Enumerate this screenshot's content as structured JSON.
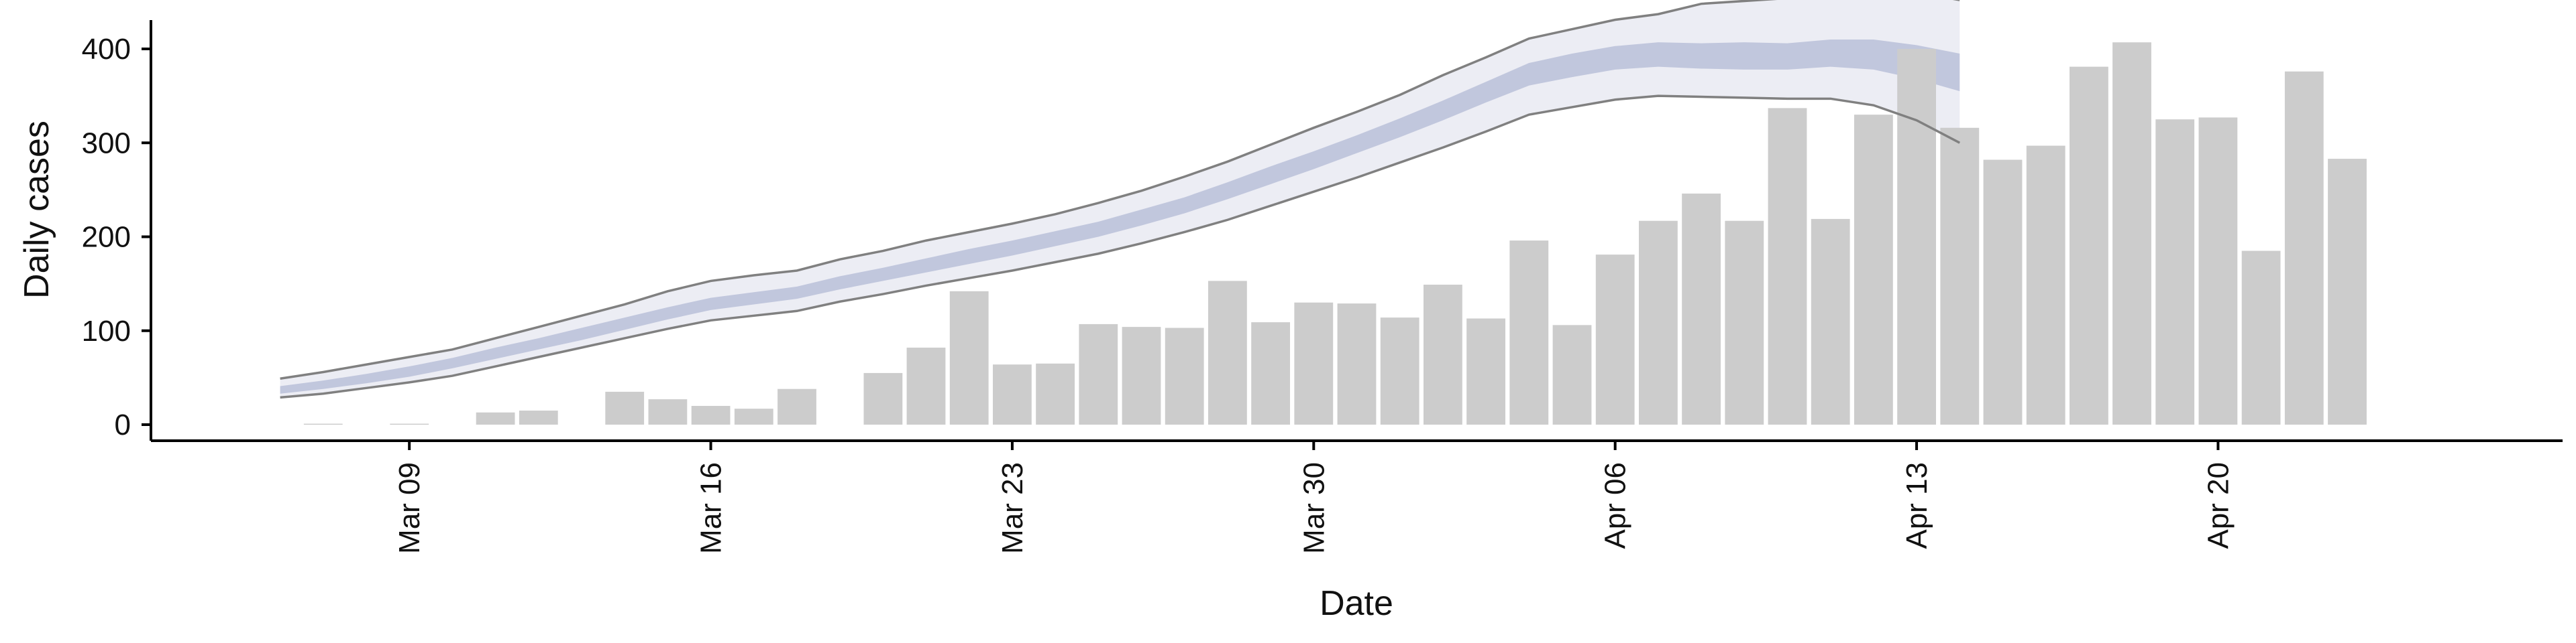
{
  "chart_data": {
    "type": "bar",
    "title": "",
    "xlabel": "Date",
    "ylabel": "Daily cases",
    "ylim": [
      0,
      430
    ],
    "y_ticks": [
      0,
      100,
      200,
      300,
      400
    ],
    "x_ticks": [
      {
        "date": "2020-03-09",
        "label": "Mar 09"
      },
      {
        "date": "2020-03-16",
        "label": "Mar 16"
      },
      {
        "date": "2020-03-23",
        "label": "Mar 23"
      },
      {
        "date": "2020-03-30",
        "label": "Mar 30"
      },
      {
        "date": "2020-04-06",
        "label": "Apr 06"
      },
      {
        "date": "2020-04-13",
        "label": "Apr 13"
      },
      {
        "date": "2020-04-20",
        "label": "Apr 20"
      }
    ],
    "xlim": [
      "2020-03-03",
      "2020-04-28"
    ],
    "grid": false,
    "legend": "none",
    "colors": {
      "bars": "#cccccc",
      "band_outer": "#c8cce0",
      "band_inner": "#b3bad6",
      "interval_line": "#808080",
      "axis": "#000000"
    },
    "bars": {
      "x": [
        "2020-03-07",
        "2020-03-09",
        "2020-03-11",
        "2020-03-12",
        "2020-03-14",
        "2020-03-15",
        "2020-03-16",
        "2020-03-17",
        "2020-03-18",
        "2020-03-20",
        "2020-03-21",
        "2020-03-22",
        "2020-03-23",
        "2020-03-24",
        "2020-03-25",
        "2020-03-26",
        "2020-03-27",
        "2020-03-28",
        "2020-03-29",
        "2020-03-30",
        "2020-03-31",
        "2020-04-01",
        "2020-04-02",
        "2020-04-03",
        "2020-04-04",
        "2020-04-05",
        "2020-04-06",
        "2020-04-07",
        "2020-04-08",
        "2020-04-09",
        "2020-04-10",
        "2020-04-11",
        "2020-04-12",
        "2020-04-13",
        "2020-04-14",
        "2020-04-15",
        "2020-04-16",
        "2020-04-17",
        "2020-04-18",
        "2020-04-19",
        "2020-04-20",
        "2020-04-21",
        "2020-04-22",
        "2020-04-23"
      ],
      "values": [
        1,
        1,
        13,
        15,
        35,
        27,
        20,
        17,
        38,
        55,
        82,
        142,
        64,
        65,
        107,
        104,
        103,
        153,
        109,
        130,
        129,
        114,
        149,
        113,
        196,
        106,
        181,
        217,
        246,
        217,
        337,
        219,
        330,
        400,
        316,
        282,
        297,
        381,
        407,
        325,
        327,
        185,
        376,
        283
      ]
    },
    "interval": {
      "x": [
        "2020-03-06",
        "2020-03-07",
        "2020-03-08",
        "2020-03-09",
        "2020-03-10",
        "2020-03-11",
        "2020-03-12",
        "2020-03-13",
        "2020-03-14",
        "2020-03-15",
        "2020-03-16",
        "2020-03-17",
        "2020-03-18",
        "2020-03-19",
        "2020-03-20",
        "2020-03-21",
        "2020-03-22",
        "2020-03-23",
        "2020-03-24",
        "2020-03-25",
        "2020-03-26",
        "2020-03-27",
        "2020-03-28",
        "2020-03-29",
        "2020-03-30",
        "2020-03-31",
        "2020-04-01",
        "2020-04-02",
        "2020-04-03",
        "2020-04-04",
        "2020-04-05",
        "2020-04-06",
        "2020-04-07",
        "2020-04-08",
        "2020-04-09",
        "2020-04-10",
        "2020-04-11",
        "2020-04-12",
        "2020-04-13",
        "2020-04-14"
      ],
      "upper": [
        49,
        56,
        64,
        72,
        80,
        92,
        104,
        116,
        128,
        142,
        153,
        159,
        164,
        176,
        185,
        196,
        205,
        214,
        224,
        236,
        249,
        264,
        280,
        298,
        316,
        333,
        351,
        372,
        391,
        411,
        421,
        431,
        437,
        448,
        451,
        454,
        460,
        465,
        460,
        452
      ],
      "median_upper": [
        41,
        47,
        54,
        62,
        71,
        82,
        92,
        103,
        114,
        125,
        135,
        141,
        147,
        158,
        167,
        177,
        187,
        196,
        206,
        216,
        229,
        242,
        258,
        275,
        291,
        308,
        326,
        345,
        365,
        385,
        395,
        403,
        407,
        406,
        407,
        406,
        410,
        410,
        404,
        395
      ],
      "median_lower": [
        33,
        38,
        44,
        51,
        60,
        70,
        80,
        90,
        101,
        112,
        122,
        128,
        134,
        144,
        153,
        162,
        171,
        180,
        190,
        200,
        212,
        225,
        240,
        256,
        272,
        289,
        306,
        324,
        343,
        361,
        370,
        378,
        381,
        379,
        378,
        378,
        381,
        378,
        368,
        355
      ],
      "lower": [
        29,
        33,
        39,
        45,
        52,
        62,
        72,
        82,
        92,
        102,
        111,
        116,
        121,
        131,
        139,
        148,
        156,
        164,
        173,
        182,
        193,
        205,
        218,
        233,
        248,
        263,
        279,
        295,
        312,
        330,
        338,
        346,
        350,
        349,
        348,
        347,
        347,
        340,
        324,
        300
      ]
    }
  }
}
